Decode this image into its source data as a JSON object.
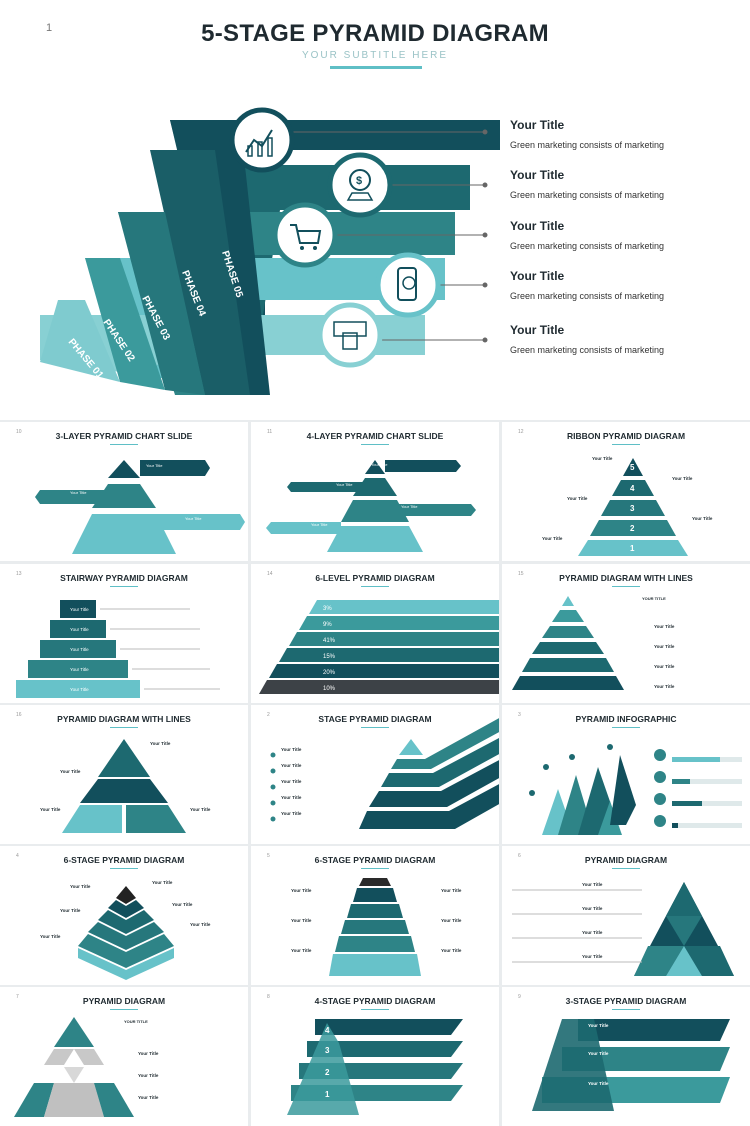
{
  "hero": {
    "page_number": "1",
    "title": "5-STAGE PYRAMID DIAGRAM",
    "subtitle": "YOUR SUBTITLE HERE",
    "phases": [
      "PHASE 01",
      "PHASE 02",
      "PHASE 03",
      "PHASE 04",
      "PHASE 05"
    ],
    "entries": [
      {
        "title": "Your Title",
        "desc": "Green marketing consists of marketing",
        "icon": "chart-icon"
      },
      {
        "title": "Your Title",
        "desc": "Green marketing consists of marketing",
        "icon": "location-dollar-icon"
      },
      {
        "title": "Your Title",
        "desc": "Green marketing consists of marketing",
        "icon": "cart-icon"
      },
      {
        "title": "Your Title",
        "desc": "Green marketing consists of marketing",
        "icon": "mobile-payment-icon"
      },
      {
        "title": "Your Title",
        "desc": "Green marketing consists of marketing",
        "icon": "card-payment-icon"
      }
    ],
    "colors": {
      "dark": "#124f5c",
      "mid": "#2e8487",
      "light": "#67c2c9",
      "pale": "#88d0d3"
    }
  },
  "thumbnails": [
    {
      "title": "3-LAYER PYRAMID CHART SLIDE",
      "num": "10"
    },
    {
      "title": "4-LAYER PYRAMID CHART SLIDE",
      "num": "11"
    },
    {
      "title": "RIBBON PYRAMID DIAGRAM",
      "num": "12",
      "levels": [
        "5",
        "4",
        "3",
        "2",
        "1"
      ]
    },
    {
      "title": "STAIRWAY PYRAMID DIAGRAM",
      "num": "13"
    },
    {
      "title": "6-LEVEL PYRAMID DIAGRAM",
      "num": "14",
      "percents": [
        "3%",
        "9%",
        "41%",
        "15%",
        "20%",
        "10%"
      ]
    },
    {
      "title": "PYRAMID DIAGRAM WITH LINES",
      "num": "15"
    },
    {
      "title": "PYRAMID DIAGRAM WITH LINES",
      "num": "16"
    },
    {
      "title": "STAGE PYRAMID DIAGRAM",
      "num": "2"
    },
    {
      "title": "PYRAMID INFOGRAPHIC",
      "num": "3"
    },
    {
      "title": "6-STAGE PYRAMID DIAGRAM",
      "num": "4"
    },
    {
      "title": "6-STAGE PYRAMID DIAGRAM",
      "num": "5"
    },
    {
      "title": "PYRAMID DIAGRAM",
      "num": "6"
    },
    {
      "title": "PYRAMID DIAGRAM",
      "num": "7"
    },
    {
      "title": "4-STAGE PYRAMID DIAGRAM",
      "num": "8",
      "levels": [
        "4",
        "3",
        "2",
        "1"
      ]
    },
    {
      "title": "3-STAGE PYRAMID DIAGRAM",
      "num": "9"
    }
  ],
  "thumb_label": "Your Title",
  "thumb_stair_label": "Your Title",
  "thumb_list_header": "YOUR TITLE"
}
